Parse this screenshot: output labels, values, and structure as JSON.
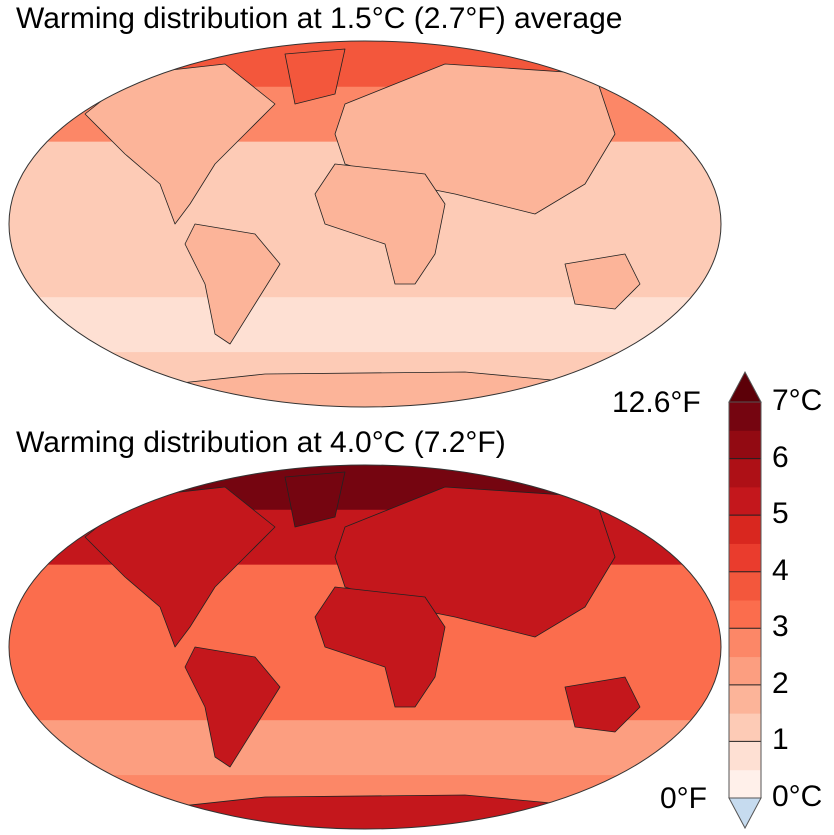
{
  "chart_data": {
    "type": "heatmap",
    "maps": [
      {
        "title": "Warming distribution at 1.5°C (2.7°F) average",
        "global_mean_c": 1.5,
        "global_mean_f": 2.7,
        "regions": {
          "ocean_tropics": 1.25,
          "southern_ocean": 0.75,
          "land_midlatitude": 1.75,
          "arctic": 3.5,
          "antarctica": 1.75
        }
      },
      {
        "title": "Warming distribution at 4.0°C (7.2°F)",
        "global_mean_c": 4.0,
        "global_mean_f": 7.2,
        "regions": {
          "ocean_tropics": 3.25,
          "southern_ocean": 2.25,
          "land_midlatitude": 5.25,
          "arctic": 7.0,
          "antarctica": 5.0
        }
      }
    ],
    "colorbar": {
      "min_c": 0,
      "max_c": 7,
      "step_c": 0.5,
      "tick_labels": [
        "0°C",
        "1",
        "2",
        "3",
        "4",
        "5",
        "6",
        "7°C"
      ],
      "fahrenheit_labels": {
        "min": "0°F",
        "max": "12.6°F"
      },
      "colors": [
        "#fff0ea",
        "#fee0d3",
        "#fdcbb6",
        "#fcb499",
        "#fc9e80",
        "#fc8767",
        "#fb6d4d",
        "#f3573c",
        "#ea3c2d",
        "#d9271f",
        "#c4171c",
        "#ae1016",
        "#920a12",
        "#750510"
      ],
      "over_color": "#5c0008",
      "under_color": "#c6dbef"
    }
  }
}
